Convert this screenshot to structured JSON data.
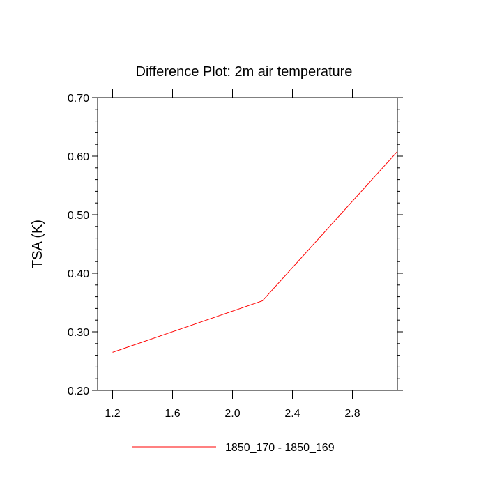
{
  "chart_data": {
    "type": "line",
    "title": "Difference Plot: 2m air temperature",
    "xlabel": "",
    "ylabel": "TSA  (K)",
    "xlim": [
      1.1,
      3.1
    ],
    "ylim": [
      0.2,
      0.7
    ],
    "x_ticks": [
      1.2,
      1.6,
      2.0,
      2.4,
      2.8
    ],
    "x_tick_labels": [
      "1.2",
      "1.6",
      "2.0",
      "2.4",
      "2.8"
    ],
    "y_ticks": [
      0.2,
      0.3,
      0.4,
      0.5,
      0.6,
      0.7
    ],
    "y_tick_labels": [
      "0.20",
      "0.30",
      "0.40",
      "0.50",
      "0.60",
      "0.70"
    ],
    "grid": false,
    "legend_position": "bottom",
    "series": [
      {
        "name": "1850_170 - 1850_169",
        "color": "#ff0000",
        "x": [
          1.2,
          2.2,
          3.1
        ],
        "y": [
          0.265,
          0.353,
          0.608
        ]
      }
    ]
  }
}
